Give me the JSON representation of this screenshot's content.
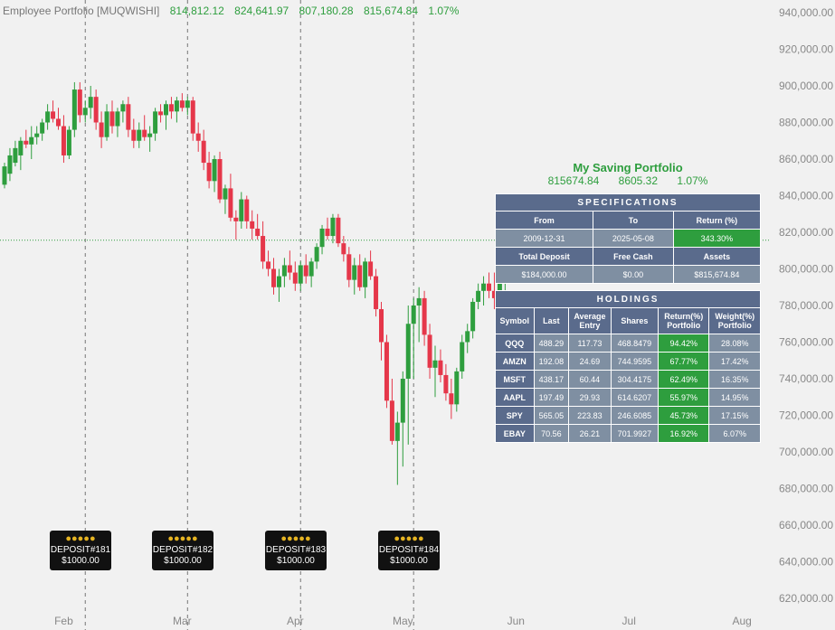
{
  "header": {
    "title": "Employee Portfolio [MUQWISHI]",
    "open": "814,812.12",
    "high": "824,641.97",
    "low": "807,180.28",
    "close": "815,674.84",
    "change": "1.07%"
  },
  "colors": {
    "up": "#2e9e3e",
    "down": "#e5374a",
    "background": "#f1f1f1",
    "table_header": "#5a6b8c",
    "table_cell": "#7f8fa2"
  },
  "chart_data": {
    "type": "candlestick",
    "ylim": [
      620000,
      940000
    ],
    "yticks": [
      "940,000.00",
      "920,000.00",
      "900,000.00",
      "880,000.00",
      "860,000.00",
      "840,000.00",
      "820,000.00",
      "800,000.00",
      "780,000.00",
      "760,000.00",
      "740,000.00",
      "720,000.00",
      "700,000.00",
      "680,000.00",
      "660,000.00",
      "640,000.00",
      "620,000.00"
    ],
    "xticks": [
      "Feb",
      "Mar",
      "Apr",
      "May",
      "Jun",
      "Jul",
      "Aug"
    ],
    "current_price": 815674.84,
    "candles": [
      {
        "o": 846000,
        "h": 858000,
        "l": 844000,
        "c": 856000
      },
      {
        "o": 852000,
        "h": 866000,
        "l": 848000,
        "c": 862000
      },
      {
        "o": 858000,
        "h": 870000,
        "l": 856000,
        "c": 866000
      },
      {
        "o": 862000,
        "h": 872000,
        "l": 854000,
        "c": 870000
      },
      {
        "o": 870000,
        "h": 876000,
        "l": 866000,
        "c": 868000
      },
      {
        "o": 868000,
        "h": 878000,
        "l": 860000,
        "c": 872000
      },
      {
        "o": 872000,
        "h": 878000,
        "l": 868000,
        "c": 874000
      },
      {
        "o": 874000,
        "h": 882000,
        "l": 870000,
        "c": 880000
      },
      {
        "o": 880000,
        "h": 890000,
        "l": 876000,
        "c": 886000
      },
      {
        "o": 886000,
        "h": 892000,
        "l": 880000,
        "c": 882000
      },
      {
        "o": 882000,
        "h": 888000,
        "l": 876000,
        "c": 878000
      },
      {
        "o": 878000,
        "h": 884000,
        "l": 858000,
        "c": 862000
      },
      {
        "o": 862000,
        "h": 878000,
        "l": 860000,
        "c": 876000
      },
      {
        "o": 876000,
        "h": 902000,
        "l": 872000,
        "c": 898000
      },
      {
        "o": 898000,
        "h": 902000,
        "l": 880000,
        "c": 884000
      },
      {
        "o": 884000,
        "h": 892000,
        "l": 880000,
        "c": 888000
      },
      {
        "o": 888000,
        "h": 900000,
        "l": 882000,
        "c": 894000
      },
      {
        "o": 894000,
        "h": 898000,
        "l": 876000,
        "c": 880000
      },
      {
        "o": 880000,
        "h": 886000,
        "l": 866000,
        "c": 872000
      },
      {
        "o": 872000,
        "h": 890000,
        "l": 870000,
        "c": 886000
      },
      {
        "o": 886000,
        "h": 892000,
        "l": 874000,
        "c": 878000
      },
      {
        "o": 878000,
        "h": 888000,
        "l": 872000,
        "c": 886000
      },
      {
        "o": 886000,
        "h": 892000,
        "l": 880000,
        "c": 890000
      },
      {
        "o": 890000,
        "h": 894000,
        "l": 872000,
        "c": 876000
      },
      {
        "o": 876000,
        "h": 882000,
        "l": 866000,
        "c": 870000
      },
      {
        "o": 870000,
        "h": 880000,
        "l": 866000,
        "c": 876000
      },
      {
        "o": 876000,
        "h": 884000,
        "l": 870000,
        "c": 872000
      },
      {
        "o": 872000,
        "h": 878000,
        "l": 864000,
        "c": 874000
      },
      {
        "o": 874000,
        "h": 888000,
        "l": 870000,
        "c": 886000
      },
      {
        "o": 886000,
        "h": 890000,
        "l": 880000,
        "c": 884000
      },
      {
        "o": 884000,
        "h": 892000,
        "l": 876000,
        "c": 890000
      },
      {
        "o": 890000,
        "h": 894000,
        "l": 882000,
        "c": 886000
      },
      {
        "o": 886000,
        "h": 894000,
        "l": 880000,
        "c": 892000
      },
      {
        "o": 892000,
        "h": 896000,
        "l": 886000,
        "c": 888000
      },
      {
        "o": 888000,
        "h": 894000,
        "l": 884000,
        "c": 892000
      },
      {
        "o": 892000,
        "h": 894000,
        "l": 870000,
        "c": 874000
      },
      {
        "o": 874000,
        "h": 880000,
        "l": 864000,
        "c": 870000
      },
      {
        "o": 870000,
        "h": 876000,
        "l": 854000,
        "c": 858000
      },
      {
        "o": 858000,
        "h": 864000,
        "l": 844000,
        "c": 848000
      },
      {
        "o": 848000,
        "h": 862000,
        "l": 842000,
        "c": 860000
      },
      {
        "o": 860000,
        "h": 864000,
        "l": 836000,
        "c": 838000
      },
      {
        "o": 838000,
        "h": 846000,
        "l": 830000,
        "c": 844000
      },
      {
        "o": 844000,
        "h": 852000,
        "l": 826000,
        "c": 828000
      },
      {
        "o": 828000,
        "h": 832000,
        "l": 816000,
        "c": 826000
      },
      {
        "o": 826000,
        "h": 842000,
        "l": 822000,
        "c": 838000
      },
      {
        "o": 838000,
        "h": 840000,
        "l": 822000,
        "c": 826000
      },
      {
        "o": 826000,
        "h": 832000,
        "l": 816000,
        "c": 822000
      },
      {
        "o": 822000,
        "h": 830000,
        "l": 816000,
        "c": 818000
      },
      {
        "o": 818000,
        "h": 826000,
        "l": 800000,
        "c": 804000
      },
      {
        "o": 804000,
        "h": 810000,
        "l": 796000,
        "c": 800000
      },
      {
        "o": 800000,
        "h": 806000,
        "l": 786000,
        "c": 790000
      },
      {
        "o": 790000,
        "h": 800000,
        "l": 782000,
        "c": 796000
      },
      {
        "o": 796000,
        "h": 806000,
        "l": 790000,
        "c": 802000
      },
      {
        "o": 802000,
        "h": 810000,
        "l": 794000,
        "c": 798000
      },
      {
        "o": 798000,
        "h": 804000,
        "l": 788000,
        "c": 792000
      },
      {
        "o": 792000,
        "h": 804000,
        "l": 788000,
        "c": 802000
      },
      {
        "o": 802000,
        "h": 808000,
        "l": 792000,
        "c": 796000
      },
      {
        "o": 796000,
        "h": 806000,
        "l": 790000,
        "c": 804000
      },
      {
        "o": 804000,
        "h": 814000,
        "l": 800000,
        "c": 812000
      },
      {
        "o": 812000,
        "h": 824000,
        "l": 808000,
        "c": 822000
      },
      {
        "o": 822000,
        "h": 828000,
        "l": 816000,
        "c": 818000
      },
      {
        "o": 818000,
        "h": 830000,
        "l": 814000,
        "c": 828000
      },
      {
        "o": 828000,
        "h": 830000,
        "l": 812000,
        "c": 814000
      },
      {
        "o": 814000,
        "h": 818000,
        "l": 804000,
        "c": 808000
      },
      {
        "o": 808000,
        "h": 812000,
        "l": 790000,
        "c": 794000
      },
      {
        "o": 794000,
        "h": 806000,
        "l": 786000,
        "c": 802000
      },
      {
        "o": 802000,
        "h": 808000,
        "l": 788000,
        "c": 790000
      },
      {
        "o": 790000,
        "h": 806000,
        "l": 784000,
        "c": 804000
      },
      {
        "o": 804000,
        "h": 810000,
        "l": 794000,
        "c": 796000
      },
      {
        "o": 796000,
        "h": 800000,
        "l": 774000,
        "c": 778000
      },
      {
        "o": 778000,
        "h": 782000,
        "l": 750000,
        "c": 760000
      },
      {
        "o": 760000,
        "h": 764000,
        "l": 724000,
        "c": 728000
      },
      {
        "o": 728000,
        "h": 740000,
        "l": 704000,
        "c": 706000
      },
      {
        "o": 706000,
        "h": 722000,
        "l": 682000,
        "c": 716000
      },
      {
        "o": 716000,
        "h": 744000,
        "l": 692000,
        "c": 740000
      },
      {
        "o": 740000,
        "h": 780000,
        "l": 704000,
        "c": 770000
      },
      {
        "o": 770000,
        "h": 784000,
        "l": 740000,
        "c": 780000
      },
      {
        "o": 780000,
        "h": 790000,
        "l": 760000,
        "c": 784000
      },
      {
        "o": 784000,
        "h": 788000,
        "l": 758000,
        "c": 764000
      },
      {
        "o": 764000,
        "h": 770000,
        "l": 740000,
        "c": 746000
      },
      {
        "o": 746000,
        "h": 758000,
        "l": 730000,
        "c": 750000
      },
      {
        "o": 750000,
        "h": 756000,
        "l": 738000,
        "c": 742000
      },
      {
        "o": 742000,
        "h": 748000,
        "l": 728000,
        "c": 732000
      },
      {
        "o": 732000,
        "h": 740000,
        "l": 718000,
        "c": 726000
      },
      {
        "o": 726000,
        "h": 746000,
        "l": 722000,
        "c": 744000
      },
      {
        "o": 744000,
        "h": 764000,
        "l": 740000,
        "c": 760000
      },
      {
        "o": 760000,
        "h": 770000,
        "l": 754000,
        "c": 766000
      },
      {
        "o": 766000,
        "h": 784000,
        "l": 762000,
        "c": 782000
      },
      {
        "o": 782000,
        "h": 792000,
        "l": 778000,
        "c": 788000
      },
      {
        "o": 788000,
        "h": 796000,
        "l": 780000,
        "c": 792000
      },
      {
        "o": 792000,
        "h": 798000,
        "l": 784000,
        "c": 788000
      },
      {
        "o": 788000,
        "h": 798000,
        "l": 778000,
        "c": 784000
      },
      {
        "o": 784000,
        "h": 796000,
        "l": 772000,
        "c": 794000
      },
      {
        "o": 794000,
        "h": 804000,
        "l": 788000,
        "c": 800000
      },
      {
        "o": 800000,
        "h": 818000,
        "l": 796000,
        "c": 814000
      },
      {
        "o": 814000,
        "h": 826000,
        "l": 808000,
        "c": 812000
      },
      {
        "o": 812000,
        "h": 818000,
        "l": 804000,
        "c": 816000
      },
      {
        "o": 816000,
        "h": 822000,
        "l": 806000,
        "c": 810000
      },
      {
        "o": 810000,
        "h": 816000,
        "l": 800000,
        "c": 804000
      },
      {
        "o": 804000,
        "h": 812000,
        "l": 798000,
        "c": 808000
      },
      {
        "o": 808000,
        "h": 816000,
        "l": 804000,
        "c": 814000
      },
      {
        "o": 814000,
        "h": 825000,
        "l": 807000,
        "c": 816000
      }
    ],
    "month_marks": [
      {
        "label": "Feb",
        "index": 11
      },
      {
        "label": "Mar",
        "index": 33
      },
      {
        "label": "Apr",
        "index": 54
      },
      {
        "label": "May",
        "index": 74
      },
      {
        "label": "Jun",
        "index": 95
      },
      {
        "label": "Jul",
        "index": 116
      },
      {
        "label": "Aug",
        "index": 137
      }
    ],
    "deposit_lines": [
      15,
      34,
      55,
      76
    ]
  },
  "deposits": [
    {
      "label": "DEPOSIT#181",
      "amount": "$1000.00"
    },
    {
      "label": "DEPOSIT#182",
      "amount": "$1000.00"
    },
    {
      "label": "DEPOSIT#183",
      "amount": "$1000.00"
    },
    {
      "label": "DEPOSIT#184",
      "amount": "$1000.00"
    }
  ],
  "portfolio": {
    "name": "My Saving Portfolio",
    "value": "815674.84",
    "change": "8605.32",
    "change_pct": "1.07%"
  },
  "specifications": {
    "title": "SPECIFICATIONS",
    "from_label": "From",
    "to_label": "To",
    "return_label": "Return (%)",
    "from": "2009-12-31",
    "to": "2025-05-08",
    "return": "343.30%",
    "total_deposit_label": "Total Deposit",
    "free_cash_label": "Free Cash",
    "assets_label": "Assets",
    "total_deposit": "$184,000.00",
    "free_cash": "$0.00",
    "assets": "$815,674.84"
  },
  "holdings": {
    "title": "HOLDINGS",
    "columns": [
      "Symbol",
      "Last",
      "Average Entry",
      "Shares",
      "Return(%) Portfolio",
      "Weight(%) Portfolio"
    ],
    "rows": [
      [
        "QQQ",
        "488.29",
        "117.73",
        "468.8479",
        "94.42%",
        "28.08%"
      ],
      [
        "AMZN",
        "192.08",
        "24.69",
        "744.9595",
        "67.77%",
        "17.42%"
      ],
      [
        "MSFT",
        "438.17",
        "60.44",
        "304.4175",
        "62.49%",
        "16.35%"
      ],
      [
        "AAPL",
        "197.49",
        "29.93",
        "614.6207",
        "55.97%",
        "14.95%"
      ],
      [
        "SPY",
        "565.05",
        "223.83",
        "246.6085",
        "45.73%",
        "17.15%"
      ],
      [
        "EBAY",
        "70.56",
        "26.21",
        "701.9927",
        "16.92%",
        "6.07%"
      ]
    ]
  }
}
